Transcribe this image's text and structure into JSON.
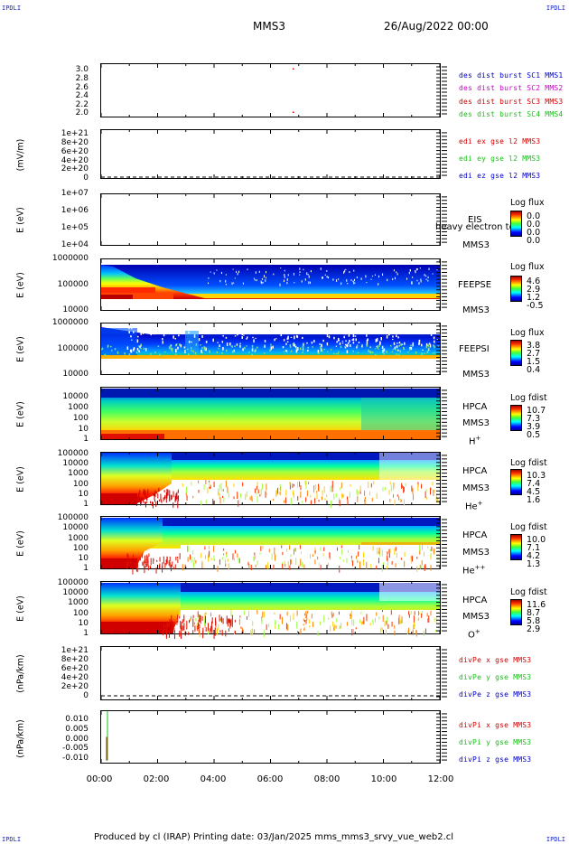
{
  "corner_labels": {
    "tl": "IPDLI",
    "tr": "IPDLI",
    "bl": "IPDLI",
    "br": "IPDLI"
  },
  "header": {
    "spacecraft": "MMS3",
    "datetime": "26/Aug/2022 00:00"
  },
  "footer": {
    "text": "Produced by cl (IRAP)   Printing date: 03/Jan/2025   mms_mms3_srvy_vue_web2.cl"
  },
  "colors": {
    "red": "#d40000",
    "green": "#16c016",
    "blue": "#0000cc",
    "magenta": "#cc00cc"
  },
  "chart_data": {
    "type": "heatmap",
    "x_axis": {
      "range": [
        "00:00",
        "12:00"
      ],
      "ticks": [
        "00:00",
        "02:00",
        "04:00",
        "06:00",
        "08:00",
        "10:00",
        "12:00"
      ]
    },
    "panels": [
      {
        "id": "p1",
        "type": "scatter",
        "yticks": [
          "3.0",
          "2.8",
          "2.6",
          "2.4",
          "2.2",
          "2.0"
        ],
        "legend": [
          {
            "text": "des dist burst SC1 MMS1",
            "color": "#0000cc"
          },
          {
            "text": "des dist burst SC2 MMS2",
            "color": "#cc00cc"
          },
          {
            "text": "des dist burst SC3 MMS3",
            "color": "#d40000"
          },
          {
            "text": "des dist burst SC4 MMS4",
            "color": "#16c016"
          }
        ],
        "points": [
          {
            "x": "06:48",
            "y": 3.0
          },
          {
            "x": "06:48",
            "y": 2.0
          }
        ]
      },
      {
        "id": "p2",
        "type": "line",
        "ylabel": "(mV/m)",
        "yticks": [
          "1e+21",
          "8e+20",
          "6e+20",
          "4e+20",
          "2e+20",
          "0"
        ],
        "legend": [
          {
            "text": "edi ex gse l2 MMS3",
            "color": "#d40000"
          },
          {
            "text": "edi ey gse l2 MMS3",
            "color": "#16c016"
          },
          {
            "text": "edi ez gse l2 MMS3",
            "color": "#0000cc"
          }
        ],
        "zero_line": true
      },
      {
        "id": "p3",
        "type": "heatmap",
        "ylabel": "E (eV)",
        "yticks": [
          "1e+07",
          "1e+06",
          "1e+05",
          "1e+04"
        ],
        "name": "EIS",
        "subname": "MMS3",
        "overlay": "heavy electron to",
        "cbar_title": "Log flux",
        "cbar": [
          "0.0",
          "0.0",
          "0.0",
          "0.0"
        ]
      },
      {
        "id": "p4",
        "type": "heatmap",
        "ylabel": "E (eV)",
        "yticks": [
          "1000000",
          "100000",
          "10000"
        ],
        "name": "FEEPSE",
        "subname": "MMS3",
        "cbar_title": "Log flux",
        "cbar": [
          "4.6",
          "2.9",
          "1.2",
          "-0.5"
        ]
      },
      {
        "id": "p5",
        "type": "heatmap",
        "ylabel": "E (eV)",
        "yticks": [
          "1000000",
          "100000",
          "10000"
        ],
        "name": "FEEPSI",
        "subname": "MMS3",
        "cbar_title": "Log flux",
        "cbar": [
          "3.8",
          "2.7",
          "1.5",
          "0.4"
        ]
      },
      {
        "id": "p6",
        "type": "heatmap",
        "ylabel": "E (eV)",
        "yticks": [
          "10000",
          "1000",
          "100",
          "10",
          "1"
        ],
        "name": "HPCA",
        "subname": "MMS3",
        "species": "H",
        "species_sup": "+",
        "cbar_title": "Log fdist",
        "cbar": [
          "10.7",
          "7.3",
          "3.9",
          "0.5"
        ]
      },
      {
        "id": "p7",
        "type": "heatmap",
        "ylabel": "E (eV)",
        "yticks": [
          "100000",
          "10000",
          "1000",
          "100",
          "10",
          "1"
        ],
        "name": "HPCA",
        "subname": "MMS3",
        "species": "He",
        "species_sup": "+",
        "cbar_title": "Log fdist",
        "cbar": [
          "10.3",
          "7.4",
          "4.5",
          "1.6"
        ]
      },
      {
        "id": "p8",
        "type": "heatmap",
        "ylabel": "E (eV)",
        "yticks": [
          "100000",
          "10000",
          "1000",
          "100",
          "10",
          "1"
        ],
        "name": "HPCA",
        "subname": "MMS3",
        "species": "He",
        "species_sup": "++",
        "cbar_title": "Log fdist",
        "cbar": [
          "10.0",
          "7.1",
          "4.2",
          "1.3"
        ]
      },
      {
        "id": "p9",
        "type": "heatmap",
        "ylabel": "E (eV)",
        "yticks": [
          "100000",
          "10000",
          "1000",
          "100",
          "10",
          "1"
        ],
        "name": "HPCA",
        "subname": "MMS3",
        "species": "O",
        "species_sup": "+",
        "cbar_title": "Log fdist",
        "cbar": [
          "11.6",
          "8.7",
          "5.8",
          "2.9"
        ]
      },
      {
        "id": "p10",
        "type": "line",
        "ylabel": "(nPa/km)",
        "yticks": [
          "1e+21",
          "8e+20",
          "6e+20",
          "4e+20",
          "2e+20",
          "0"
        ],
        "legend": [
          {
            "text": "divPe x gse MMS3",
            "color": "#d40000"
          },
          {
            "text": "divPe y gse MMS3",
            "color": "#16c016"
          },
          {
            "text": "divPe z gse MMS3",
            "color": "#0000cc"
          }
        ],
        "zero_line": true
      },
      {
        "id": "p11",
        "type": "line",
        "ylabel": "(nPa/km)",
        "yticks": [
          "0.010",
          "0.005",
          "0.000",
          "-0.005",
          "-0.010"
        ],
        "ylim": [
          -0.013,
          0.013
        ],
        "legend": [
          {
            "text": "divPi x gse MMS3",
            "color": "#d40000"
          },
          {
            "text": "divPi y gse MMS3",
            "color": "#16c016"
          },
          {
            "text": "divPi z gse MMS3",
            "color": "#0000cc"
          }
        ]
      }
    ]
  }
}
